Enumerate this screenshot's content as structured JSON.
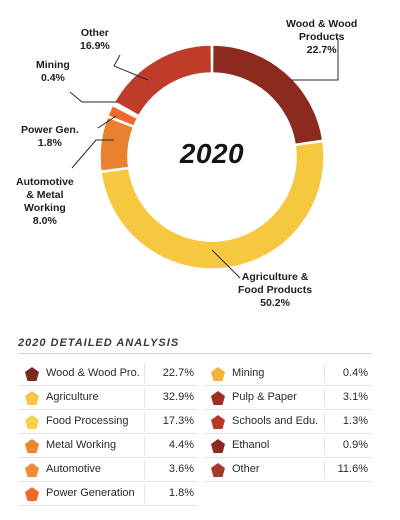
{
  "chart_data": {
    "type": "pie",
    "center_label": "2020",
    "slices": [
      {
        "label": "Wood & Wood Products",
        "value": 22.7,
        "color": "#8d2a20"
      },
      {
        "label": "Agriculture & Food Products",
        "value": 50.2,
        "color": "#f6c840"
      },
      {
        "label": "Automotive & Metal Working",
        "value": 8.0,
        "color": "#e9822f"
      },
      {
        "label": "Power Gen.",
        "value": 1.8,
        "color": "#ee6a2c"
      },
      {
        "label": "Mining",
        "value": 0.4,
        "color": "#f0a03a"
      },
      {
        "label": "Other",
        "value": 16.9,
        "color": "#bf3b2a"
      }
    ],
    "callouts": {
      "wood": {
        "line1": "Wood & Wood",
        "line2": "Products",
        "pct": "22.7%"
      },
      "agri": {
        "line1": "Agriculture &",
        "line2": "Food Products",
        "pct": "50.2%"
      },
      "auto": {
        "line1": "Automotive",
        "line2": "& Metal",
        "line3": "Working",
        "pct": "8.0%"
      },
      "power": {
        "line1": "Power Gen.",
        "pct": "1.8%"
      },
      "mining": {
        "line1": "Mining",
        "pct": "0.4%"
      },
      "other": {
        "line1": "Other",
        "pct": "16.9%"
      }
    }
  },
  "table": {
    "title": "2020 DETAILED ANALYSIS",
    "left": [
      {
        "label": "Wood & Wood Pro.",
        "value": "22.7%",
        "color": "#7c2a21",
        "icon": "pentagon-icon"
      },
      {
        "label": "Agriculture",
        "value": "32.9%",
        "color": "#f7c640",
        "icon": "pentagon-icon"
      },
      {
        "label": "Food Processing",
        "value": "17.3%",
        "color": "#f8d14c",
        "icon": "pentagon-icon"
      },
      {
        "label": "Metal Working",
        "value": "4.4%",
        "color": "#e9862f",
        "icon": "pentagon-icon"
      },
      {
        "label": "Automotive",
        "value": "3.6%",
        "color": "#ee8d35",
        "icon": "pentagon-icon"
      },
      {
        "label": "Power Generation",
        "value": "1.8%",
        "color": "#ee6a2c",
        "icon": "pentagon-icon"
      }
    ],
    "right": [
      {
        "label": "Mining",
        "value": "0.4%",
        "color": "#f4b13c",
        "icon": "pentagon-icon"
      },
      {
        "label": "Pulp & Paper",
        "value": "3.1%",
        "color": "#9d2f22",
        "icon": "pentagon-icon"
      },
      {
        "label": "Schools and Edu.",
        "value": "1.3%",
        "color": "#b53b27",
        "icon": "pentagon-icon"
      },
      {
        "label": "Ethanol",
        "value": "0.9%",
        "color": "#8d2a20",
        "icon": "pentagon-icon"
      },
      {
        "label": "Other",
        "value": "11.6%",
        "color": "#a3392a",
        "icon": "pentagon-icon"
      }
    ]
  }
}
